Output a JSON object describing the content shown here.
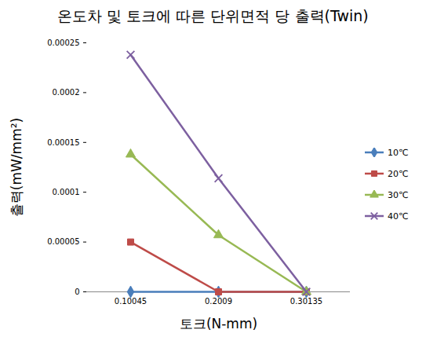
{
  "chart_data": {
    "type": "line",
    "title": "온도차 및 토크에 따른 단위면적 당 출력(Twin)",
    "x_label": "토크(N-mm)",
    "y_label": "출력(mW/mm²)",
    "categories": [
      "0.10045",
      "0.2009",
      "0.30135"
    ],
    "ylim": [
      0,
      0.00025
    ],
    "yticks": [
      0,
      5e-05,
      0.0001,
      0.00015,
      0.0002,
      0.00025
    ],
    "grid": false,
    "legend": "right",
    "series": [
      {
        "name": "10℃",
        "color": "#4a7ebb",
        "marker": "diamond",
        "values": [
          0,
          0,
          0
        ]
      },
      {
        "name": "20℃",
        "color": "#be4b48",
        "marker": "square",
        "values": [
          5e-05,
          0,
          0
        ]
      },
      {
        "name": "30℃",
        "color": "#98b954",
        "marker": "triangle",
        "values": [
          0.000138,
          5.7e-05,
          0
        ]
      },
      {
        "name": "40℃",
        "color": "#7d60a0",
        "marker": "x",
        "values": [
          0.000238,
          0.000114,
          0
        ]
      }
    ]
  }
}
